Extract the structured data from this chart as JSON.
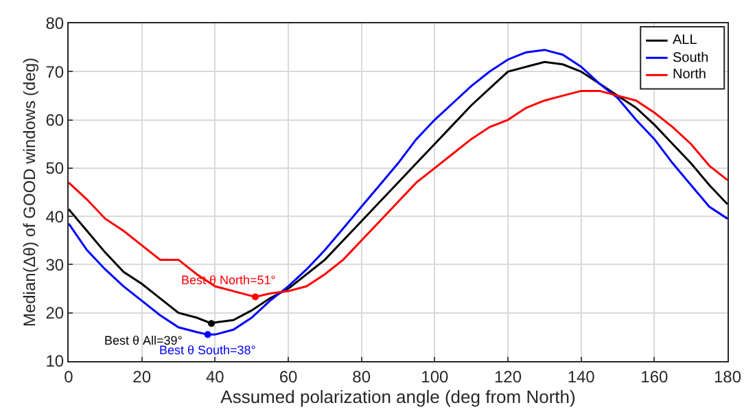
{
  "chart_data": {
    "type": "line",
    "xlabel": "Assumed polarization angle (deg from North)",
    "ylabel": "Median(Δθ) of GOOD windows (deg)",
    "xlim": [
      0,
      180
    ],
    "xticks": [
      0,
      20,
      40,
      60,
      80,
      100,
      120,
      140,
      160,
      180
    ],
    "ylim": [
      10,
      80
    ],
    "yticks": [
      10,
      20,
      30,
      40,
      50,
      60,
      70,
      80
    ],
    "grid": true,
    "legend": "top right",
    "marker": "none",
    "line_style": "solid",
    "series": [
      {
        "name": "ALL",
        "color": "#000000",
        "x": [
          0,
          5,
          10,
          15,
          20,
          25,
          30,
          35,
          39,
          40,
          45,
          50,
          55,
          60,
          65,
          70,
          75,
          80,
          85,
          90,
          95,
          100,
          105,
          110,
          115,
          120,
          125,
          130,
          135,
          140,
          145,
          150,
          155,
          160,
          165,
          170,
          175,
          180
        ],
        "values": [
          41.5,
          37,
          32.5,
          28.5,
          26,
          23,
          20,
          19,
          17.8,
          18,
          18.5,
          20.5,
          23,
          25,
          28,
          31,
          35,
          39,
          43,
          47,
          51,
          55,
          59,
          63,
          66.5,
          70,
          71,
          72,
          71.5,
          70,
          67.5,
          65,
          62.5,
          59,
          55,
          51,
          46.5,
          42.5
        ]
      },
      {
        "name": "South",
        "color": "#0000ff",
        "x": [
          0,
          5,
          10,
          15,
          20,
          25,
          30,
          35,
          38,
          40,
          45,
          50,
          55,
          60,
          65,
          70,
          75,
          80,
          85,
          90,
          95,
          100,
          105,
          110,
          115,
          120,
          125,
          130,
          135,
          140,
          145,
          150,
          155,
          160,
          165,
          170,
          175,
          180
        ],
        "values": [
          38.5,
          33,
          29,
          25.5,
          22.5,
          19.5,
          17,
          16,
          15.5,
          15.5,
          16.5,
          19,
          22.5,
          25.5,
          29,
          33,
          37.5,
          42,
          46.5,
          51,
          56,
          60,
          63.5,
          67,
          70,
          72.5,
          74,
          74.5,
          73.5,
          71,
          67.5,
          64.5,
          60,
          56,
          51,
          46.5,
          42,
          39.5
        ]
      },
      {
        "name": "North",
        "color": "#ff0000",
        "x": [
          0,
          5,
          10,
          15,
          20,
          25,
          30,
          35,
          40,
          45,
          50,
          51,
          55,
          60,
          65,
          70,
          75,
          80,
          85,
          90,
          95,
          100,
          105,
          110,
          115,
          120,
          125,
          130,
          135,
          140,
          145,
          150,
          155,
          160,
          165,
          170,
          175,
          180
        ],
        "values": [
          47,
          43.5,
          39.5,
          37,
          34,
          31,
          31,
          28,
          25.5,
          24.5,
          23.5,
          23.3,
          24,
          24.5,
          25.5,
          28,
          31,
          35,
          39,
          43,
          47,
          50,
          53,
          56,
          58.5,
          60,
          62.5,
          64,
          65,
          66,
          66,
          65,
          64,
          61.5,
          58.5,
          55,
          50.5,
          47.5
        ]
      },
      {
        "type": "scatter",
        "marker": "circle",
        "color": "#ff0000",
        "x": [
          51
        ],
        "values": [
          23.3
        ]
      },
      {
        "type": "scatter",
        "marker": "circle",
        "color": "#000000",
        "x": [
          39
        ],
        "values": [
          17.8
        ]
      },
      {
        "type": "scatter",
        "marker": "circle",
        "color": "#0000ff",
        "x": [
          38
        ],
        "values": [
          15.5
        ]
      }
    ],
    "annotations": [
      {
        "text": "Best θ North=51°",
        "x": 51,
        "y": 23.3
      },
      {
        "text": "Best θ All=39°",
        "x": 39,
        "y": 17.8
      },
      {
        "text": "Best θ South=38°",
        "x": 38,
        "y": 15.5
      }
    ]
  }
}
